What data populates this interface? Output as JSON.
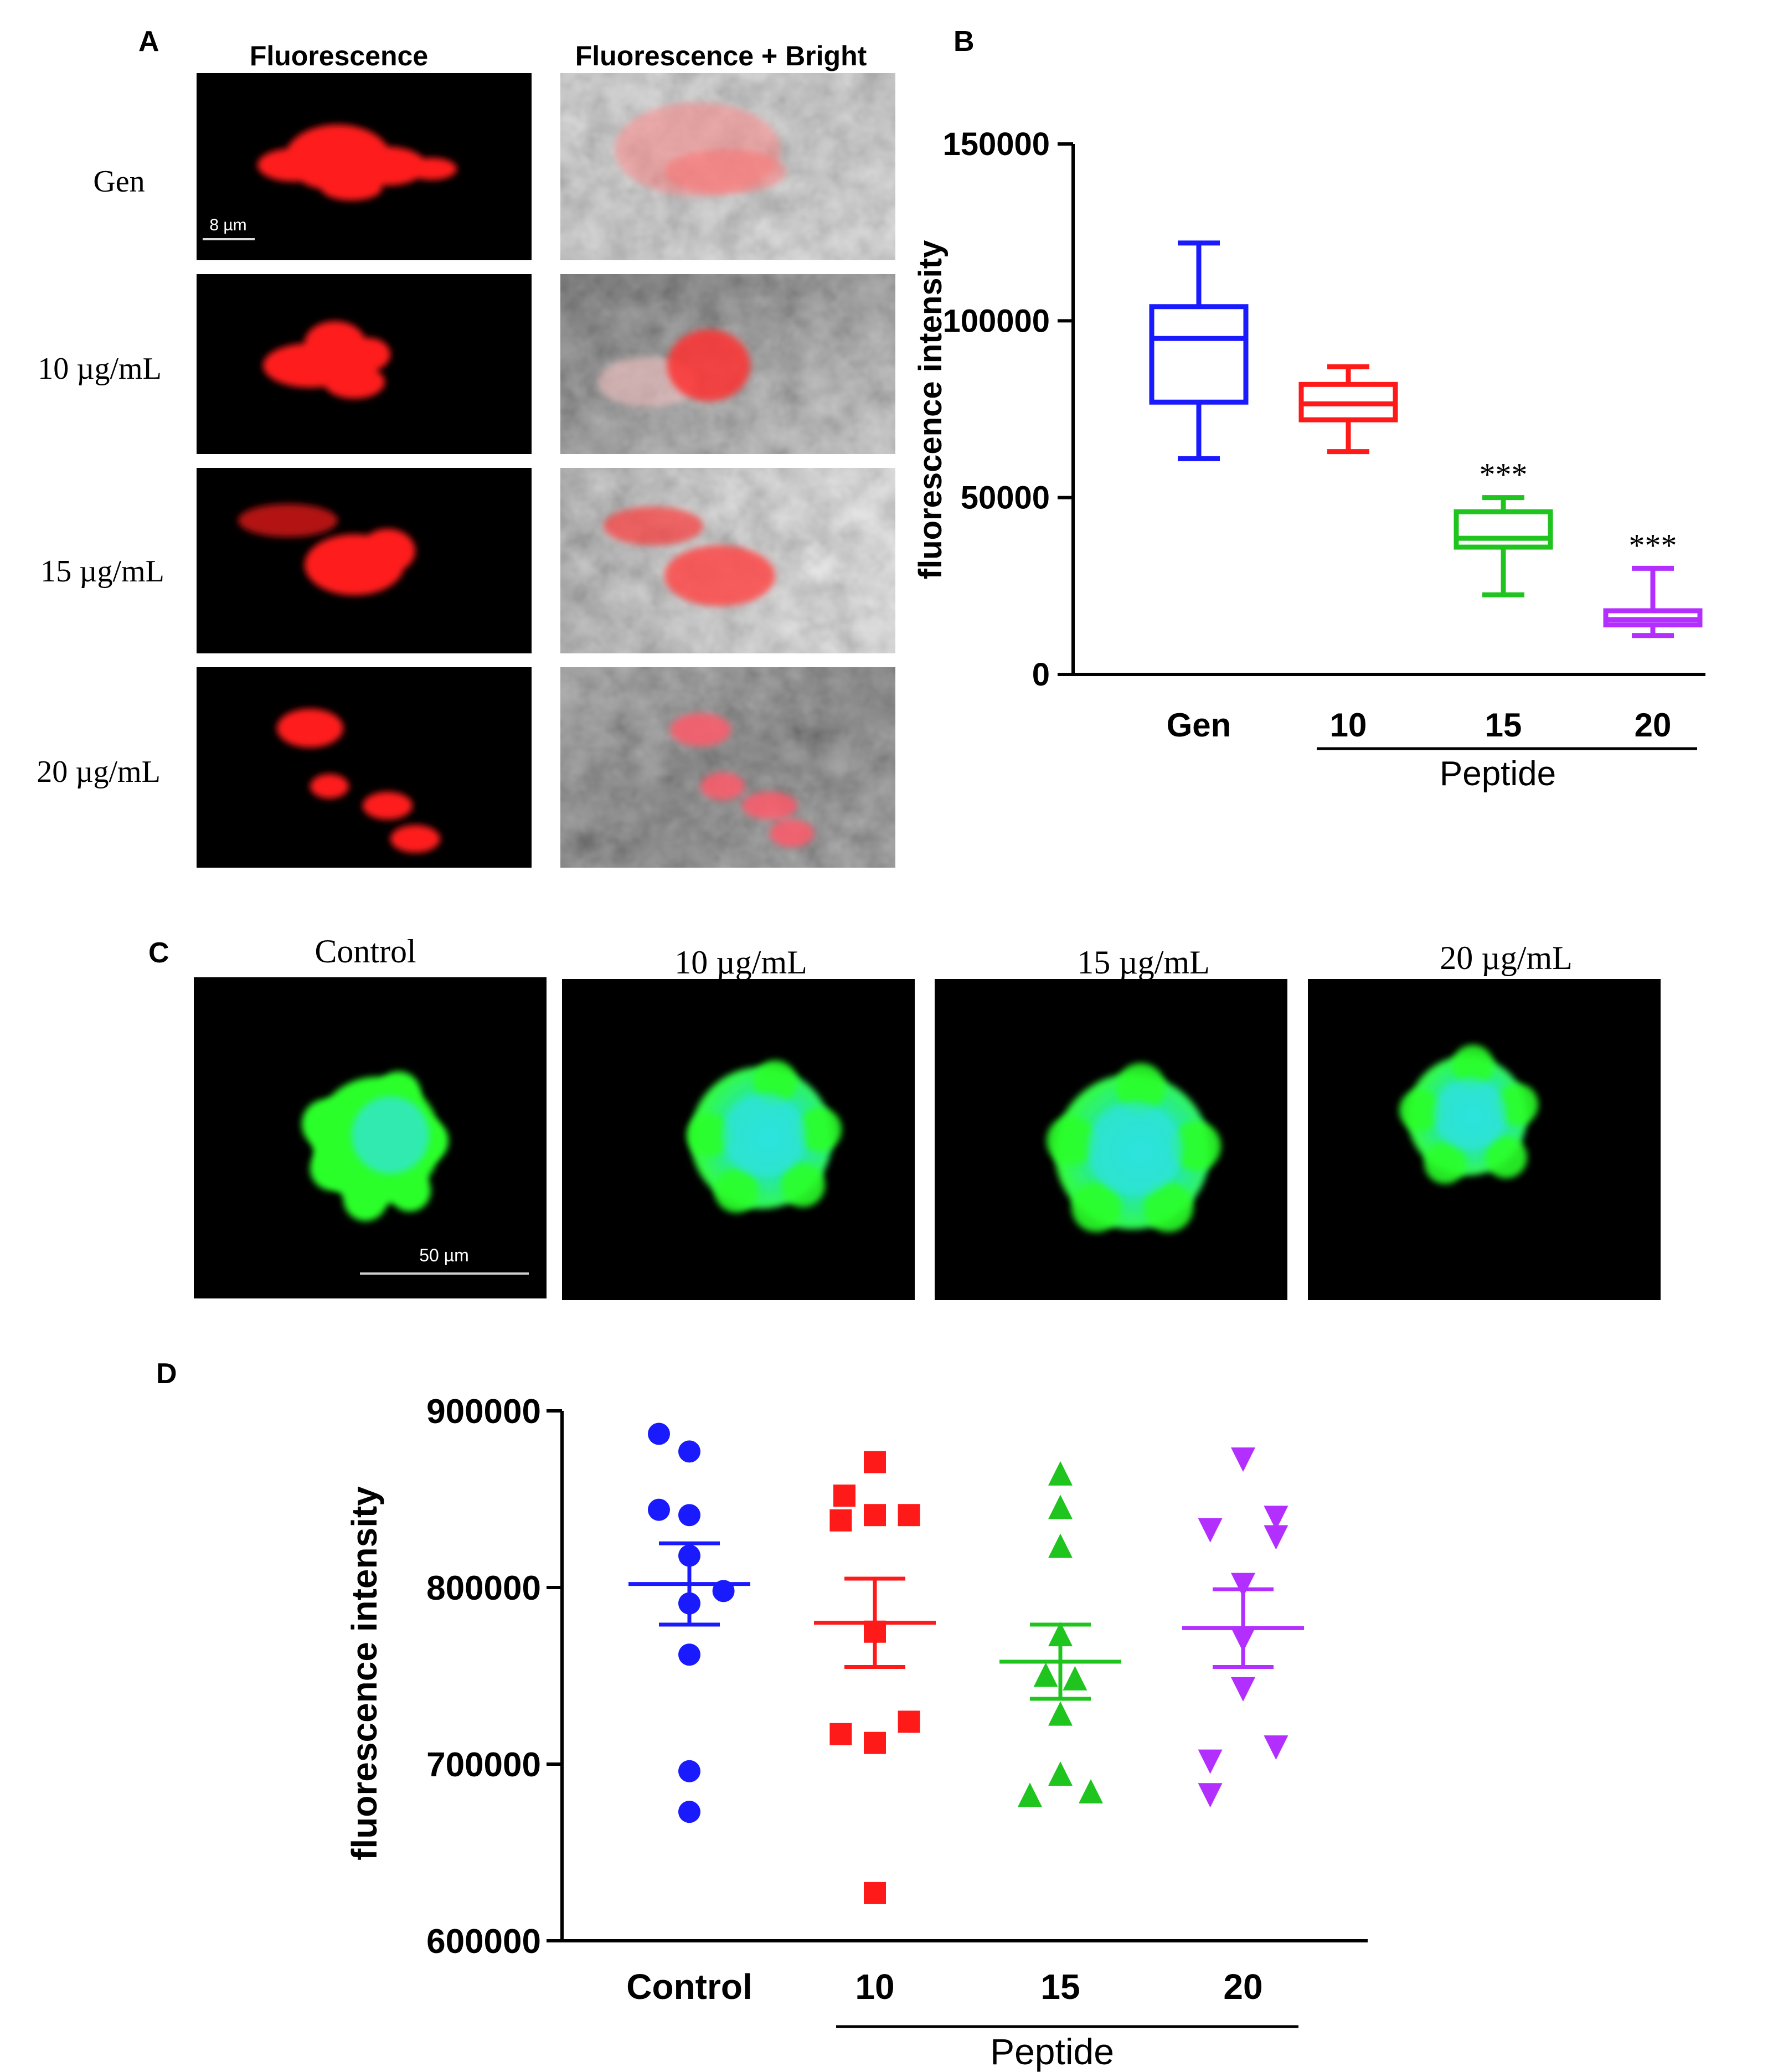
{
  "panel_labels": {
    "a": "A",
    "b": "B",
    "c": "C",
    "d": "D"
  },
  "panel_a": {
    "col_headers": [
      "Fluorescence",
      "Fluorescence + Bright"
    ],
    "row_labels": [
      "Gen",
      "10 µg/mL",
      "15 µg/mL",
      "20 µg/mL"
    ],
    "scale_bar": "8 µm"
  },
  "panel_c": {
    "col_labels": [
      "Control",
      "10 µg/mL",
      "15 µg/mL",
      "20 µg/mL"
    ],
    "scale_bar": "50 µm"
  },
  "colors": {
    "blue": "#1a1aff",
    "red": "#ff1a1a",
    "green": "#1fc41f",
    "purple": "#b22fff",
    "fluor_red": "#ff2020",
    "fluor_green": "#3cff3c",
    "fluor_cyan": "#2fe6d8"
  },
  "chart_data": [
    {
      "type": "box",
      "ylabel": "fluorescence intensity",
      "ylim": [
        0,
        150000
      ],
      "yticks": [
        0,
        50000,
        100000,
        150000
      ],
      "ytick_labels": [
        "0",
        "50000",
        "100000",
        "150000"
      ],
      "categories": [
        "Gen",
        "10",
        "15",
        "20"
      ],
      "group_label": "Peptide",
      "series": [
        {
          "category": "Gen",
          "min": 61000,
          "q1": 77000,
          "median": 95000,
          "q3": 104000,
          "max": 122000,
          "annotation": ""
        },
        {
          "category": "10",
          "min": 63000,
          "q1": 72000,
          "median": 76500,
          "q3": 82000,
          "max": 87000,
          "annotation": ""
        },
        {
          "category": "15",
          "min": 22500,
          "q1": 36000,
          "median": 38500,
          "q3": 46000,
          "max": 50000,
          "annotation": "***"
        },
        {
          "category": "20",
          "min": 11000,
          "q1": 14000,
          "median": 15500,
          "q3": 18000,
          "max": 30000,
          "annotation": "***"
        }
      ]
    },
    {
      "type": "scatter",
      "ylabel": "fluorescence intensity",
      "ylim": [
        600000,
        900000
      ],
      "yticks": [
        600000,
        700000,
        800000,
        900000
      ],
      "ytick_labels": [
        "600000",
        "700000",
        "800000",
        "900000"
      ],
      "categories": [
        "Control",
        "10",
        "15",
        "20"
      ],
      "group_label": "Peptide",
      "series": [
        {
          "category": "Control",
          "marker": "circle",
          "mean": 802000,
          "sem": 23000,
          "points": [
            [
              -0.25,
              887000
            ],
            [
              0.0,
              877000
            ],
            [
              -0.25,
              844000
            ],
            [
              0.0,
              841000
            ],
            [
              0.0,
              818000
            ],
            [
              0.28,
              798000
            ],
            [
              0.0,
              791000
            ],
            [
              0.0,
              762000
            ],
            [
              0.0,
              696000
            ],
            [
              0.0,
              673000
            ]
          ]
        },
        {
          "category": "10",
          "marker": "square",
          "mean": 780000,
          "sem": 25000,
          "points": [
            [
              0.0,
              871000
            ],
            [
              -0.25,
              852000
            ],
            [
              -0.28,
              838000
            ],
            [
              0.0,
              841000
            ],
            [
              0.28,
              841000
            ],
            [
              0.0,
              775000
            ],
            [
              0.28,
              724000
            ],
            [
              -0.28,
              717000
            ],
            [
              0.0,
              712000
            ],
            [
              0.0,
              627000
            ]
          ]
        },
        {
          "category": "15",
          "marker": "triangle",
          "mean": 758000,
          "sem": 21000,
          "points": [
            [
              0.0,
              864000
            ],
            [
              0.0,
              845000
            ],
            [
              0.0,
              823000
            ],
            [
              -0.12,
              750000
            ],
            [
              0.0,
              773000
            ],
            [
              0.12,
              748000
            ],
            [
              0.0,
              728000
            ],
            [
              -0.25,
              682000
            ],
            [
              0.0,
              694000
            ],
            [
              0.25,
              684000
            ]
          ]
        },
        {
          "category": "20",
          "marker": "triangle-down",
          "mean": 777000,
          "sem": 22000,
          "points": [
            [
              0.0,
              873000
            ],
            [
              -0.27,
              833000
            ],
            [
              0.27,
              840000
            ],
            [
              0.27,
              829000
            ],
            [
              0.0,
              802000
            ],
            [
              0.0,
              771000
            ],
            [
              0.0,
              743000
            ],
            [
              -0.27,
              702000
            ],
            [
              0.27,
              710000
            ],
            [
              -0.27,
              683000
            ]
          ]
        }
      ]
    }
  ]
}
